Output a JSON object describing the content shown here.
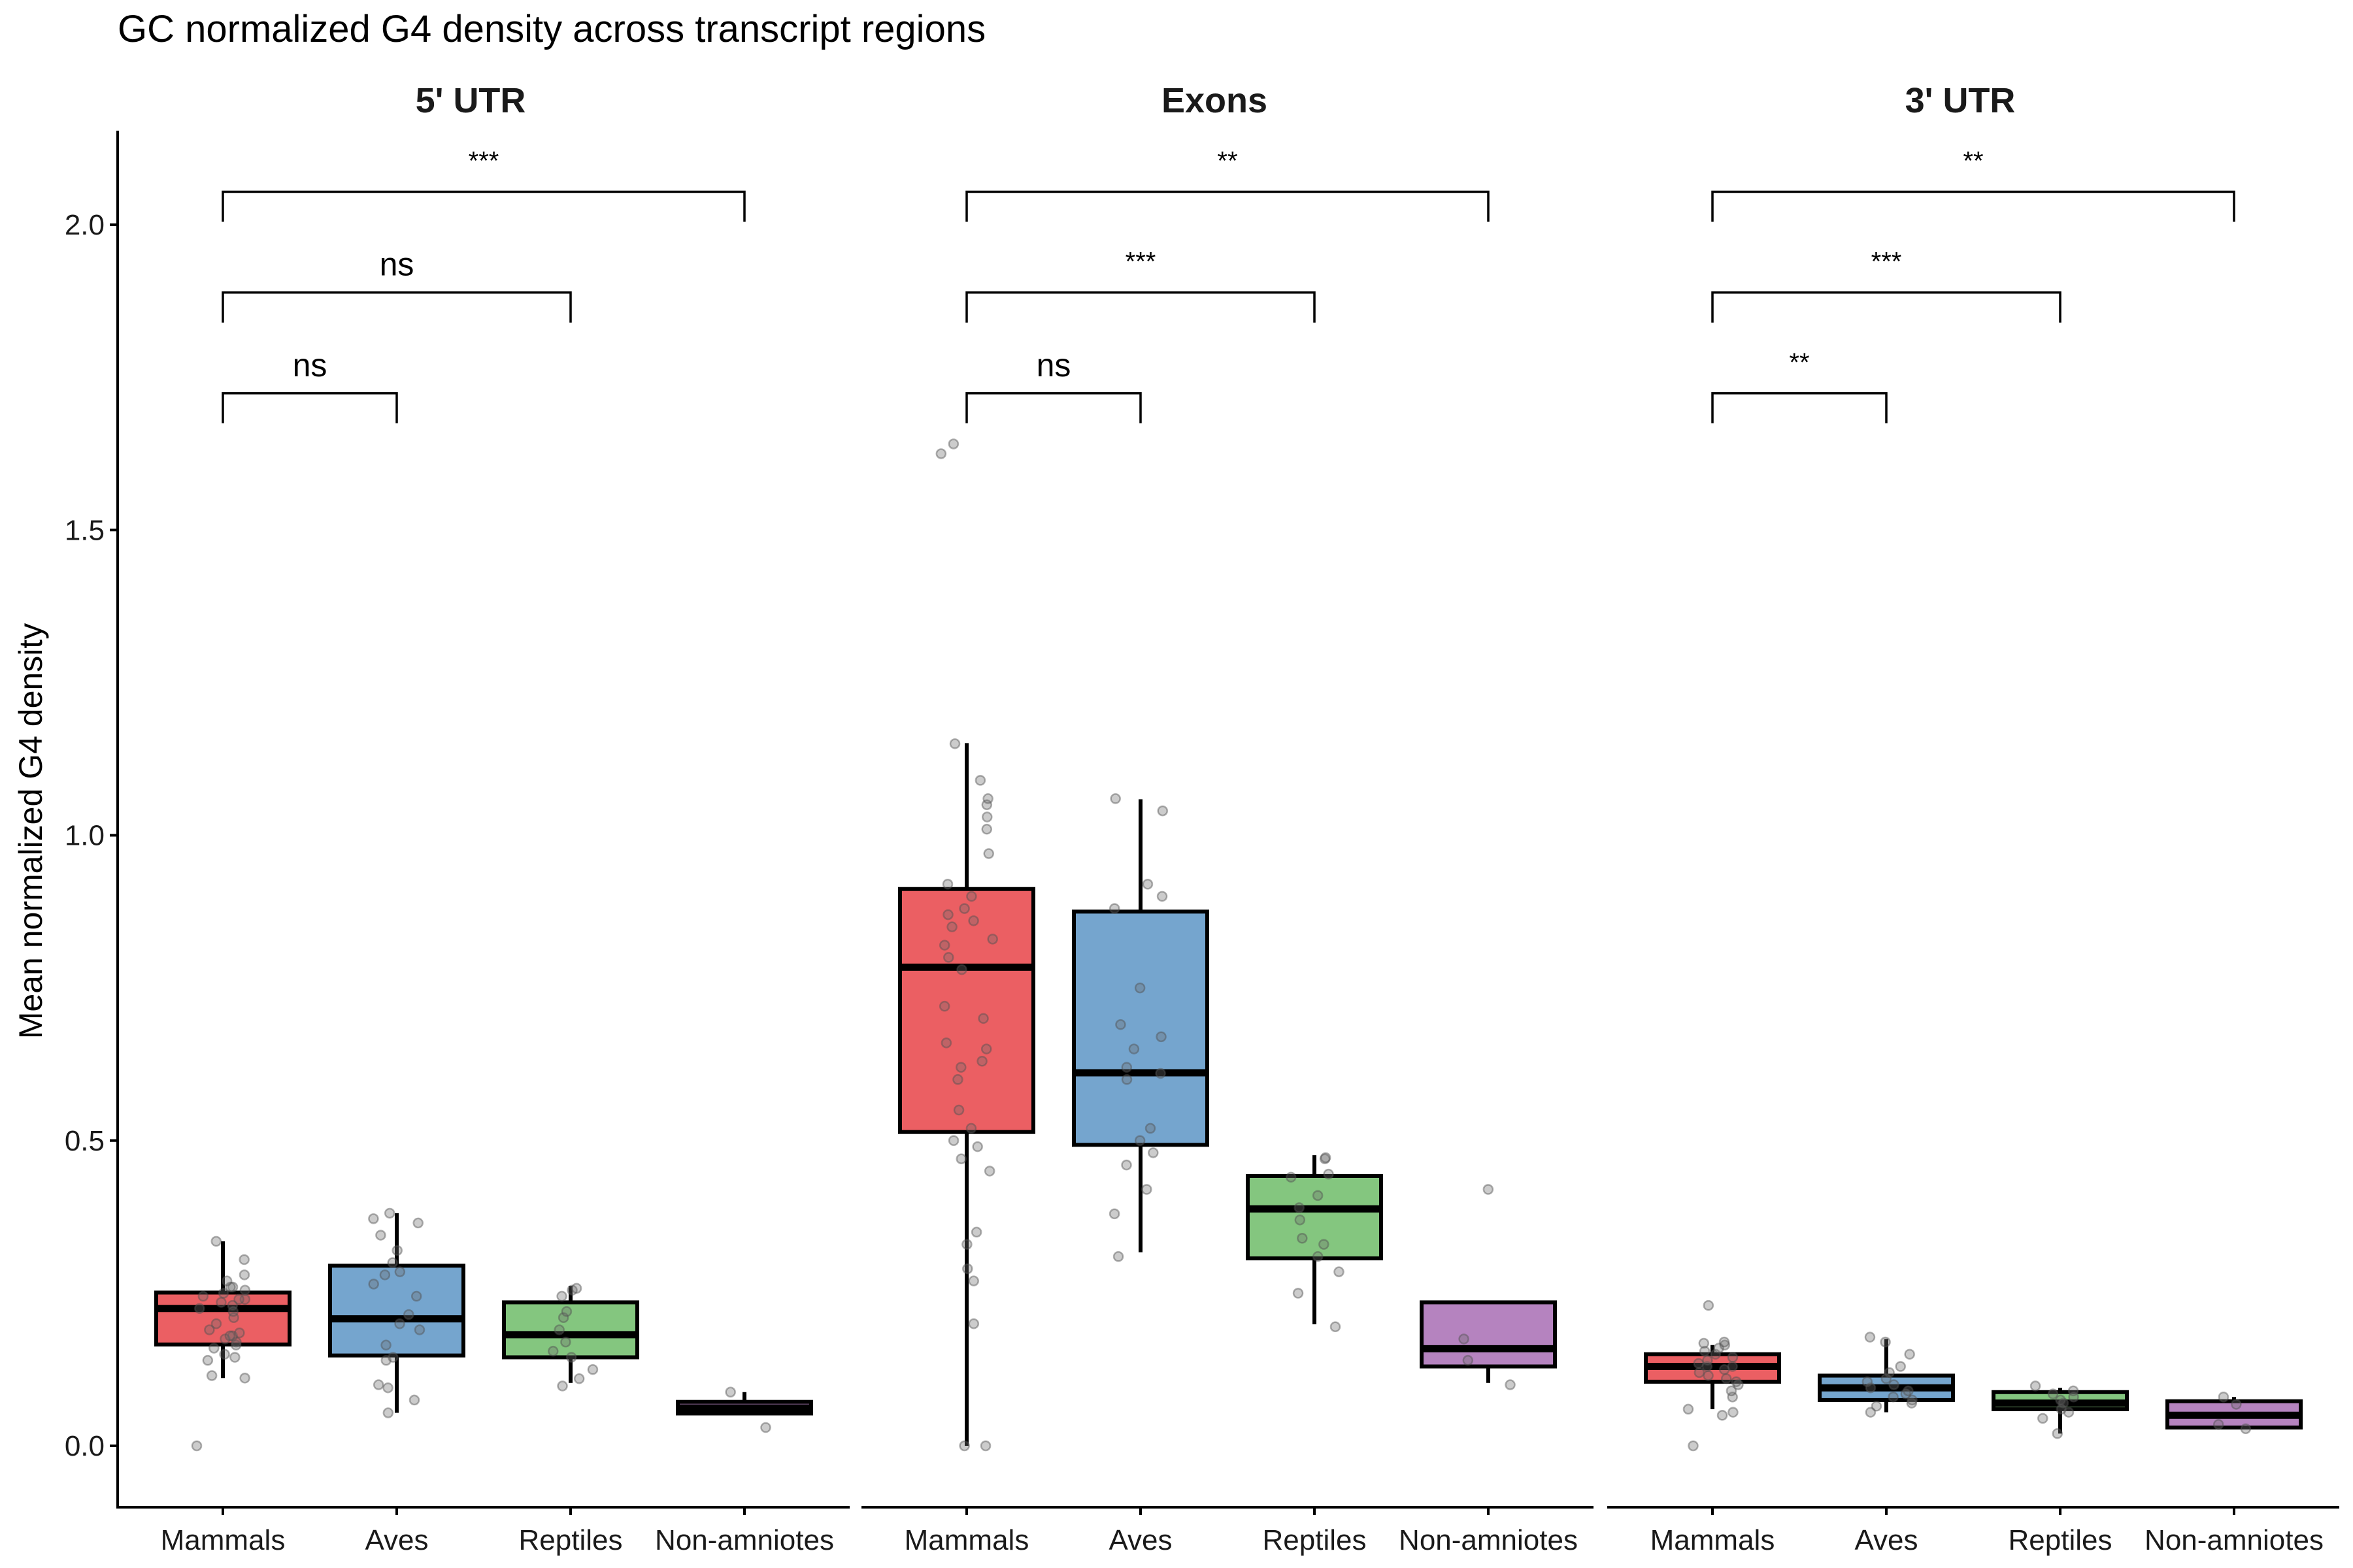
{
  "chart_data": {
    "type": "boxplot",
    "title": "GC normalized G4 density across transcript regions",
    "ylabel": "Mean normalized G4 density",
    "xlabel": "",
    "ylim": [
      -0.1,
      2.15
    ],
    "yticks": [
      0.0,
      0.5,
      1.0,
      1.5,
      2.0
    ],
    "ytick_labels": [
      "0.0",
      "0.5",
      "1.0",
      "1.5",
      "2.0"
    ],
    "grid": false,
    "legend": "none",
    "categories": [
      "Mammals",
      "Aves",
      "Reptiles",
      "Non-amniotes"
    ],
    "colors": {
      "Mammals": "#EB5F63",
      "Aves": "#75A5CE",
      "Reptiles": "#84C67F",
      "Non-amniotes": "#B583BF",
      "points": "#888888",
      "outline": "#000000"
    },
    "facets": [
      {
        "label": "5' UTR",
        "boxes": [
          {
            "group": "Mammals",
            "whisker_low": 0.111,
            "q1": 0.166,
            "median": 0.225,
            "q3": 0.251,
            "whisker_high": 0.335,
            "points": [
              0.0,
              0.111,
              0.115,
              0.14,
              0.145,
              0.15,
              0.16,
              0.165,
              0.17,
              0.175,
              0.18,
              0.18,
              0.185,
              0.19,
              0.2,
              0.21,
              0.22,
              0.225,
              0.23,
              0.235,
              0.24,
              0.24,
              0.245,
              0.25,
              0.255,
              0.26,
              0.26,
              0.27,
              0.28,
              0.305,
              0.335
            ]
          },
          {
            "group": "Aves",
            "whisker_low": 0.054,
            "q1": 0.148,
            "median": 0.208,
            "q3": 0.295,
            "whisker_high": 0.381,
            "points": [
              0.054,
              0.075,
              0.095,
              0.1,
              0.14,
              0.145,
              0.165,
              0.19,
              0.2,
              0.215,
              0.245,
              0.265,
              0.28,
              0.285,
              0.32,
              0.3,
              0.345,
              0.365,
              0.372,
              0.381
            ]
          },
          {
            "group": "Reptiles",
            "whisker_low": 0.103,
            "q1": 0.145,
            "median": 0.182,
            "q3": 0.235,
            "whisker_high": 0.262,
            "points": [
              0.098,
              0.11,
              0.125,
              0.145,
              0.155,
              0.17,
              0.19,
              0.21,
              0.22,
              0.245,
              0.255,
              0.258
            ]
          },
          {
            "group": "Non-amniotes",
            "whisker_low": 0.051,
            "q1": 0.053,
            "median": 0.062,
            "q3": 0.072,
            "whisker_high": 0.088,
            "points": [
              0.088,
              0.03
            ]
          }
        ],
        "comparisons": [
          {
            "pair": [
              "Mammals",
              "Aves"
            ],
            "label": "ns",
            "level": 1.724
          },
          {
            "pair": [
              "Mammals",
              "Reptiles"
            ],
            "label": "ns",
            "level": 1.889
          },
          {
            "pair": [
              "Mammals",
              "Non-amniotes"
            ],
            "label": "***",
            "level": 2.054
          }
        ]
      },
      {
        "label": "Exons",
        "boxes": [
          {
            "group": "Mammals",
            "whisker_low": 0.0,
            "q1": 0.514,
            "median": 0.784,
            "q3": 0.912,
            "whisker_high": 1.151,
            "points": [
              0.0,
              0.0,
              0.2,
              0.27,
              0.29,
              0.33,
              0.35,
              0.45,
              0.47,
              0.49,
              0.5,
              0.52,
              0.55,
              0.6,
              0.62,
              0.63,
              0.65,
              0.66,
              0.7,
              0.72,
              0.78,
              0.8,
              0.82,
              0.83,
              0.85,
              0.86,
              0.87,
              0.88,
              0.9,
              0.92,
              0.97,
              1.01,
              1.03,
              1.05,
              1.06,
              1.09,
              1.15,
              1.625,
              1.641
            ]
          },
          {
            "group": "Aves",
            "whisker_low": 0.317,
            "q1": 0.493,
            "median": 0.611,
            "q3": 0.875,
            "whisker_high": 1.059,
            "points": [
              0.31,
              0.38,
              0.42,
              0.46,
              0.48,
              0.5,
              0.52,
              0.6,
              0.61,
              0.62,
              0.65,
              0.67,
              0.69,
              0.75,
              0.88,
              0.9,
              0.92,
              1.04,
              1.06
            ]
          },
          {
            "group": "Reptiles",
            "whisker_low": 0.199,
            "q1": 0.307,
            "median": 0.388,
            "q3": 0.442,
            "whisker_high": 0.476,
            "points": [
              0.195,
              0.25,
              0.285,
              0.31,
              0.33,
              0.34,
              0.37,
              0.39,
              0.41,
              0.44,
              0.445,
              0.47,
              0.472
            ]
          },
          {
            "group": "Non-amniotes",
            "whisker_low": 0.103,
            "q1": 0.13,
            "median": 0.159,
            "q3": 0.235,
            "whisker_high": 0.235,
            "points": [
              0.42,
              0.175,
              0.14,
              0.1
            ]
          }
        ],
        "comparisons": [
          {
            "pair": [
              "Mammals",
              "Aves"
            ],
            "label": "ns",
            "level": 1.724
          },
          {
            "pair": [
              "Mammals",
              "Reptiles"
            ],
            "label": "***",
            "level": 1.889
          },
          {
            "pair": [
              "Mammals",
              "Non-amniotes"
            ],
            "label": "**",
            "level": 2.054
          }
        ]
      },
      {
        "label": "3' UTR",
        "boxes": [
          {
            "group": "Mammals",
            "whisker_low": 0.06,
            "q1": 0.105,
            "median": 0.13,
            "q3": 0.15,
            "whisker_high": 0.165,
            "points": [
              0.0,
              0.05,
              0.055,
              0.06,
              0.08,
              0.09,
              0.1,
              0.105,
              0.11,
              0.115,
              0.12,
              0.125,
              0.13,
              0.13,
              0.135,
              0.14,
              0.145,
              0.15,
              0.155,
              0.16,
              0.165,
              0.168,
              0.17,
              0.23
            ]
          },
          {
            "group": "Aves",
            "whisker_low": 0.055,
            "q1": 0.075,
            "median": 0.095,
            "q3": 0.115,
            "whisker_high": 0.175,
            "points": [
              0.055,
              0.065,
              0.07,
              0.075,
              0.08,
              0.085,
              0.09,
              0.095,
              0.1,
              0.105,
              0.11,
              0.12,
              0.13,
              0.15,
              0.17,
              0.178
            ]
          },
          {
            "group": "Reptiles",
            "whisker_low": 0.02,
            "q1": 0.06,
            "median": 0.07,
            "q3": 0.088,
            "whisker_high": 0.095,
            "points": [
              0.02,
              0.045,
              0.055,
              0.06,
              0.07,
              0.075,
              0.08,
              0.085,
              0.09,
              0.098
            ]
          },
          {
            "group": "Non-amniotes",
            "whisker_low": 0.03,
            "q1": 0.03,
            "median": 0.05,
            "q3": 0.073,
            "whisker_high": 0.08,
            "points": [
              0.08,
              0.068,
              0.035,
              0.028
            ]
          }
        ],
        "comparisons": [
          {
            "pair": [
              "Mammals",
              "Aves"
            ],
            "label": "**",
            "level": 1.724
          },
          {
            "pair": [
              "Mammals",
              "Reptiles"
            ],
            "label": "***",
            "level": 1.889
          },
          {
            "pair": [
              "Mammals",
              "Non-amniotes"
            ],
            "label": "**",
            "level": 2.054
          }
        ]
      }
    ]
  }
}
